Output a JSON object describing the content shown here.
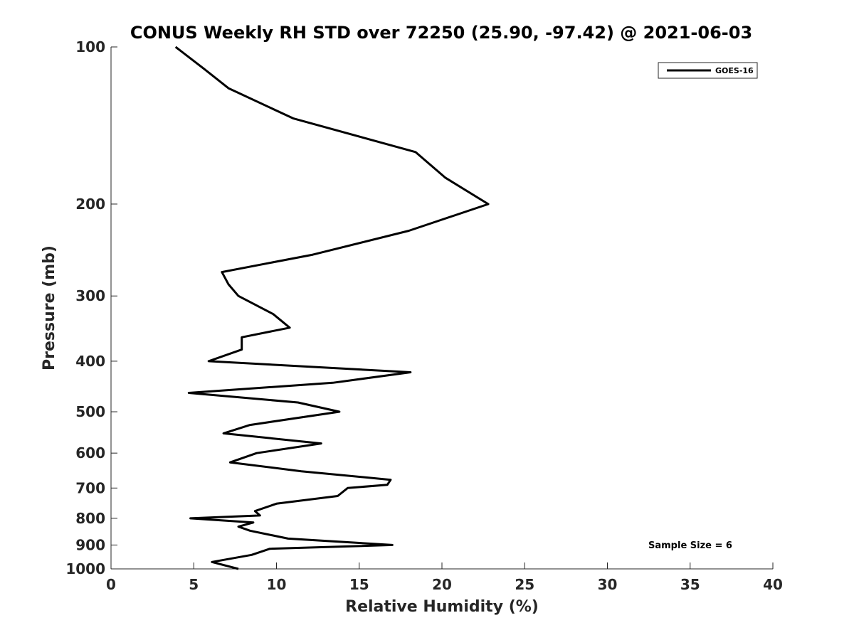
{
  "chart_data": {
    "type": "line",
    "title": "CONUS Weekly RH STD over 72250 (25.90, -97.42) @ 2021-06-03",
    "xlabel": "Relative Humidity (%)",
    "ylabel": "Pressure (mb)",
    "xlim": [
      0,
      40
    ],
    "ylim": [
      1000,
      100
    ],
    "yscale": "log",
    "y_reversed": true,
    "x_ticks": [
      0,
      5,
      10,
      15,
      20,
      25,
      30,
      35,
      40
    ],
    "x_tick_labels": [
      "0",
      "5",
      "10",
      "15",
      "20",
      "25",
      "30",
      "35",
      "40"
    ],
    "y_ticks": [
      100,
      200,
      300,
      400,
      500,
      600,
      700,
      800,
      900,
      1000
    ],
    "y_tick_labels": [
      "100",
      "200",
      "300",
      "400",
      "500",
      "600",
      "700",
      "800",
      "900",
      "1000"
    ],
    "grid": false,
    "legend_position": "top-right",
    "line_color": "#000000",
    "annotation": "Sample Size = 6",
    "series": [
      {
        "name": "GOES-16",
        "x": [
          3.9,
          5.6,
          7.1,
          11.0,
          18.4,
          20.2,
          22.8,
          18.0,
          12.2,
          6.7,
          7.1,
          7.7,
          9.8,
          10.8,
          7.9,
          7.9,
          5.9,
          18.1,
          13.4,
          4.7,
          11.3,
          13.8,
          8.4,
          6.8,
          12.7,
          8.8,
          7.2,
          11.5,
          16.9,
          16.7,
          14.3,
          13.7,
          10.0,
          8.7,
          9.0,
          4.8,
          8.6,
          7.7,
          8.4,
          10.7,
          17.0,
          9.6,
          8.5,
          6.1,
          7.7
        ],
        "y": [
          100,
          110,
          120,
          137,
          159,
          178,
          200,
          225,
          250,
          270,
          285,
          300,
          325,
          345,
          360,
          380,
          400,
          420,
          440,
          460,
          480,
          500,
          530,
          550,
          575,
          600,
          625,
          650,
          675,
          690,
          700,
          725,
          750,
          775,
          790,
          800,
          815,
          830,
          845,
          875,
          900,
          915,
          940,
          970,
          1000
        ]
      }
    ]
  }
}
